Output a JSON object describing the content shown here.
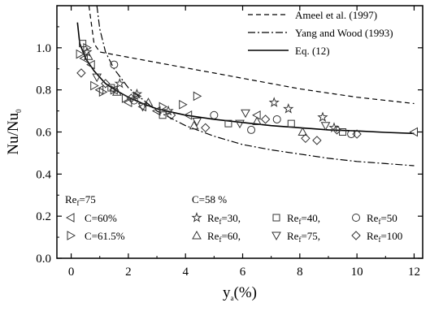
{
  "chart_data": {
    "type": "scatter",
    "xlabel": "y",
    "xlabel_sub": "a",
    "xlabel_suffix": "(%)",
    "ylabel": "Nu/Nu",
    "ylabel_sub": "0",
    "xlim": [
      -0.5,
      12.3
    ],
    "ylim": [
      0.0,
      1.2
    ],
    "xticks": [
      "0",
      "2",
      "4",
      "6",
      "8",
      "10",
      "12"
    ],
    "yticks": [
      "0.0",
      "0.2",
      "0.4",
      "0.6",
      "0.8",
      "1.0"
    ],
    "grid": false,
    "lines": [
      {
        "name": "Ameel et al. (1997)",
        "style": "dashed",
        "points": [
          [
            0.62,
            1.2
          ],
          [
            0.8,
            1.02
          ],
          [
            1.0,
            0.98
          ],
          [
            2,
            0.955
          ],
          [
            3,
            0.93
          ],
          [
            4,
            0.905
          ],
          [
            5,
            0.88
          ],
          [
            6,
            0.855
          ],
          [
            7,
            0.83
          ],
          [
            8,
            0.805
          ],
          [
            9,
            0.785
          ],
          [
            10,
            0.765
          ],
          [
            11,
            0.75
          ],
          [
            12,
            0.735
          ]
        ]
      },
      {
        "name": "Yang and Wood (1993)",
        "style": "dashdot",
        "points": [
          [
            0.9,
            1.2
          ],
          [
            1.0,
            1.09
          ],
          [
            1.2,
            0.98
          ],
          [
            1.5,
            0.9
          ],
          [
            2,
            0.81
          ],
          [
            3,
            0.7
          ],
          [
            4,
            0.63
          ],
          [
            5,
            0.58
          ],
          [
            6,
            0.54
          ],
          [
            7,
            0.515
          ],
          [
            8,
            0.495
          ],
          [
            9,
            0.475
          ],
          [
            10,
            0.46
          ],
          [
            11,
            0.45
          ],
          [
            12,
            0.44
          ]
        ]
      },
      {
        "name": "Eq. (12)",
        "style": "solid",
        "points": [
          [
            0.22,
            1.12
          ],
          [
            0.3,
            1.02
          ],
          [
            0.5,
            0.95
          ],
          [
            0.8,
            0.89
          ],
          [
            1.2,
            0.83
          ],
          [
            1.6,
            0.795
          ],
          [
            2,
            0.765
          ],
          [
            2.5,
            0.735
          ],
          [
            3,
            0.71
          ],
          [
            4,
            0.68
          ],
          [
            5,
            0.66
          ],
          [
            6,
            0.645
          ],
          [
            7,
            0.63
          ],
          [
            8,
            0.62
          ],
          [
            9,
            0.61
          ],
          [
            10,
            0.605
          ],
          [
            11,
            0.598
          ],
          [
            12,
            0.593
          ]
        ]
      }
    ],
    "scatter_groups": [
      {
        "marker": "tri-left",
        "points": [
          [
            0.45,
            0.95
          ],
          [
            0.7,
            0.92
          ],
          [
            1.0,
            0.8
          ],
          [
            1.5,
            0.8
          ],
          [
            2.0,
            0.74
          ],
          [
            2.5,
            0.72
          ],
          [
            3.0,
            0.7
          ],
          [
            4.1,
            0.68
          ],
          [
            6.5,
            0.68
          ],
          [
            12,
            0.6
          ]
        ]
      },
      {
        "marker": "tri-right",
        "points": [
          [
            0.3,
            0.97
          ],
          [
            0.55,
            1.0
          ],
          [
            0.8,
            0.82
          ],
          [
            1.1,
            0.79
          ],
          [
            1.5,
            0.8
          ],
          [
            1.9,
            0.76
          ],
          [
            2.3,
            0.77
          ],
          [
            3.2,
            0.72
          ],
          [
            3.9,
            0.73
          ],
          [
            4.4,
            0.77
          ]
        ]
      },
      {
        "marker": "star",
        "points": [
          [
            0.55,
            0.98
          ],
          [
            1.7,
            0.83
          ],
          [
            2.3,
            0.78
          ],
          [
            3.4,
            0.7
          ],
          [
            7.1,
            0.74
          ],
          [
            7.6,
            0.71
          ],
          [
            8.8,
            0.67
          ],
          [
            9.2,
            0.62
          ]
        ]
      },
      {
        "marker": "square",
        "points": [
          [
            0.4,
            1.02
          ],
          [
            1.4,
            0.81
          ],
          [
            3.2,
            0.68
          ],
          [
            5.5,
            0.64
          ],
          [
            7.7,
            0.64
          ],
          [
            9.5,
            0.6
          ]
        ]
      },
      {
        "marker": "circle",
        "points": [
          [
            1.5,
            0.92
          ],
          [
            2.2,
            0.75
          ],
          [
            5.0,
            0.68
          ],
          [
            6.3,
            0.61
          ],
          [
            7.2,
            0.66
          ],
          [
            9.8,
            0.59
          ]
        ]
      },
      {
        "marker": "tri-up",
        "points": [
          [
            0.6,
            0.96
          ],
          [
            1.6,
            0.79
          ],
          [
            2.7,
            0.74
          ],
          [
            4.3,
            0.63
          ],
          [
            6.5,
            0.65
          ],
          [
            8.1,
            0.6
          ]
        ]
      },
      {
        "marker": "tri-down",
        "points": [
          [
            0.9,
            0.86
          ],
          [
            2.5,
            0.72
          ],
          [
            4.4,
            0.65
          ],
          [
            5.9,
            0.64
          ],
          [
            6.1,
            0.69
          ],
          [
            8.9,
            0.63
          ]
        ]
      },
      {
        "marker": "diamond",
        "points": [
          [
            0.35,
            0.88
          ],
          [
            1.2,
            0.83
          ],
          [
            2.1,
            0.76
          ],
          [
            3.5,
            0.68
          ],
          [
            4.7,
            0.62
          ],
          [
            6.8,
            0.66
          ],
          [
            8.2,
            0.57
          ],
          [
            8.6,
            0.56
          ],
          [
            9.3,
            0.61
          ],
          [
            10,
            0.59
          ]
        ]
      }
    ],
    "legend_lines": [
      {
        "label": "Ameel et al. (1997)",
        "style": "dashed"
      },
      {
        "label": "Yang and Wood (1993)",
        "style": "dashdot"
      },
      {
        "label": "Eq. (12)",
        "style": "solid"
      }
    ],
    "legend_groups": {
      "left_title": "Re",
      "left_title_sub": "f",
      "left_title_suffix": "=75",
      "left_items": [
        {
          "marker": "tri-left",
          "label": "C=60%"
        },
        {
          "marker": "tri-right",
          "label": "C=61.5%"
        }
      ],
      "right_title": "C=58 %",
      "right_items": [
        {
          "marker": "star",
          "prefix": "Re",
          "sub": "f",
          "suffix": "=30,"
        },
        {
          "marker": "square",
          "prefix": "Re",
          "sub": "f",
          "suffix": "=40,"
        },
        {
          "marker": "circle",
          "prefix": "Re",
          "sub": "f",
          "suffix": "=50"
        },
        {
          "marker": "tri-up",
          "prefix": "Re",
          "sub": "f",
          "suffix": "=60,"
        },
        {
          "marker": "tri-down",
          "prefix": "Re",
          "sub": "f",
          "suffix": "=75,"
        },
        {
          "marker": "diamond",
          "prefix": "Re",
          "sub": "f",
          "suffix": "=100"
        }
      ]
    }
  }
}
